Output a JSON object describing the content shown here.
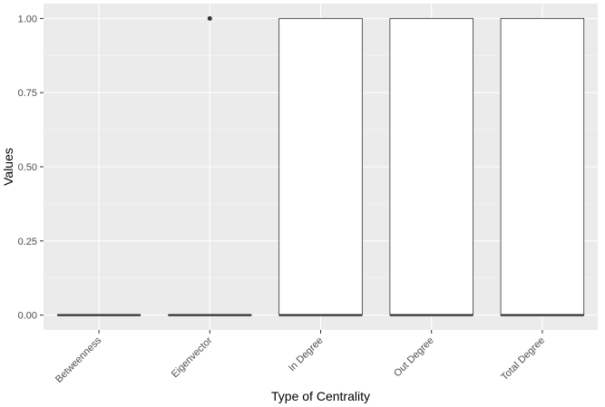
{
  "chart_data": {
    "type": "boxplot",
    "xlabel": "Type of Centrality",
    "ylabel": "Values",
    "ylim": [
      -0.05,
      1.05
    ],
    "yticks": [
      0.0,
      0.25,
      0.5,
      0.75,
      1.0
    ],
    "ytick_labels": [
      "0.00",
      "0.25",
      "0.50",
      "0.75",
      "1.00"
    ],
    "categories": [
      "Betweenness",
      "Eigenvector",
      "In Degree",
      "Out Degree",
      "Total Degree"
    ],
    "boxes": [
      {
        "category": "Betweenness",
        "min": 0,
        "q1": 0,
        "median": 0,
        "q3": 0,
        "max": 0,
        "outliers": []
      },
      {
        "category": "Eigenvector",
        "min": 0,
        "q1": 0,
        "median": 0,
        "q3": 0,
        "max": 0,
        "outliers": [
          1.0
        ]
      },
      {
        "category": "In Degree",
        "min": 0,
        "q1": 0,
        "median": 0,
        "q3": 1,
        "max": 1,
        "outliers": []
      },
      {
        "category": "Out Degree",
        "min": 0,
        "q1": 0,
        "median": 0,
        "q3": 1,
        "max": 1,
        "outliers": []
      },
      {
        "category": "Total Degree",
        "min": 0,
        "q1": 0,
        "median": 0,
        "q3": 1,
        "max": 1,
        "outliers": []
      }
    ],
    "grid": true,
    "legend": "none",
    "colors": {
      "panel_background": "#ebebeb",
      "grid_major": "#ffffff",
      "grid_minor": "#f5f5f5",
      "box_fill": "#ffffff",
      "box_stroke": "#333333",
      "tick_text": "#4d4d4d",
      "axis_title": "#000000"
    }
  }
}
